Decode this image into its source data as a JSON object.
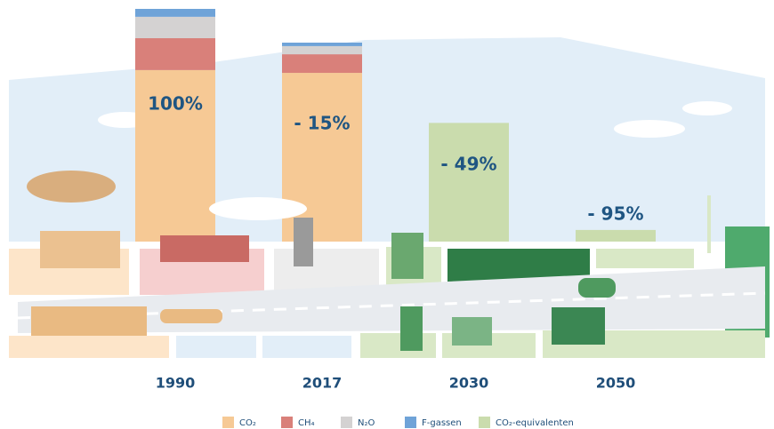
{
  "chart_data": {
    "type": "stacked_bar",
    "categories": [
      "1990",
      "2017",
      "2030",
      "2050"
    ],
    "series": [
      {
        "name": "CO₂",
        "color": "#f6c995",
        "values": [
          73.7,
          72.5,
          null,
          null
        ]
      },
      {
        "name": "CH₄",
        "color": "#d9807a",
        "values": [
          13.7,
          8,
          null,
          null
        ]
      },
      {
        "name": "N₂O",
        "color": "#d4d2d2",
        "values": [
          9.2,
          3.5,
          null,
          null
        ]
      },
      {
        "name": "F-gassen",
        "color": "#6fa3d8",
        "values": [
          3.4,
          1.5,
          null,
          null
        ]
      },
      {
        "name": "CO₂-equivalenten",
        "color": "#cadcad",
        "values": [
          null,
          null,
          51,
          5
        ]
      }
    ],
    "annotations": [
      "100%",
      "- 15%",
      "- 49%",
      "- 95%"
    ],
    "ylim": [
      0,
      100
    ]
  }
}
